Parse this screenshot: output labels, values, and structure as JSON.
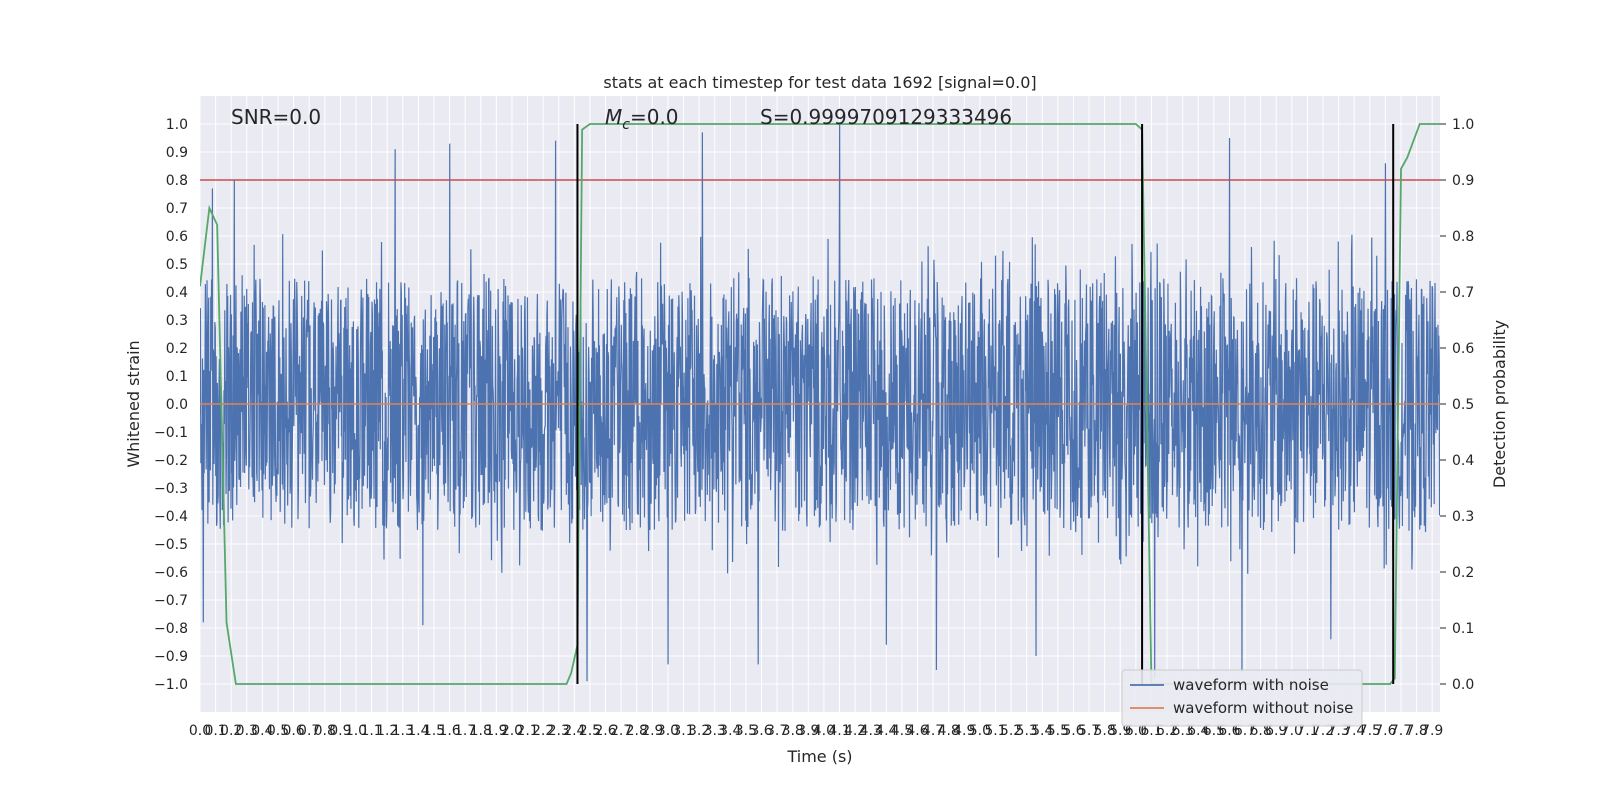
{
  "chart_data": {
    "type": "line",
    "title": "stats at each timestep for test data 1692 [signal=0.0]",
    "xlabel": "Time (s)",
    "ylabel_left": "Whitened strain",
    "ylabel_right": "Detection probability",
    "xlim": [
      0.0,
      7.95
    ],
    "ylim_left": [
      -1.1,
      1.1
    ],
    "ylim_right": [
      -0.05,
      1.05
    ],
    "x_ticks": [
      0.0,
      0.1,
      0.2,
      0.3,
      0.4,
      0.5,
      0.6,
      0.7,
      0.8,
      0.9,
      1.0,
      1.1,
      1.2,
      1.3,
      1.4,
      1.5,
      1.6,
      1.7,
      1.8,
      1.9,
      2.0,
      2.1,
      2.2,
      2.3,
      2.4,
      2.5,
      2.6,
      2.7,
      2.8,
      2.9,
      3.0,
      3.1,
      3.2,
      3.3,
      3.4,
      3.5,
      3.6,
      3.7,
      3.8,
      3.9,
      4.0,
      4.1,
      4.2,
      4.3,
      4.4,
      4.5,
      4.6,
      4.7,
      4.8,
      4.9,
      5.0,
      5.1,
      5.2,
      5.3,
      5.4,
      5.5,
      5.6,
      5.7,
      5.8,
      5.9,
      6.0,
      6.1,
      6.2,
      6.3,
      6.4,
      6.5,
      6.6,
      6.7,
      6.8,
      6.9,
      7.0,
      7.1,
      7.2,
      7.3,
      7.4,
      7.5,
      7.6,
      7.7,
      7.8,
      7.9
    ],
    "y_ticks_left": [
      -1.0,
      -0.9,
      -0.8,
      -0.7,
      -0.6,
      -0.5,
      -0.4,
      -0.3,
      -0.2,
      -0.1,
      0.0,
      0.1,
      0.2,
      0.3,
      0.4,
      0.5,
      0.6,
      0.7,
      0.8,
      0.9,
      1.0
    ],
    "y_tick_labels_left": [
      "−1.0",
      "−0.9",
      "−0.8",
      "−0.7",
      "−0.6",
      "−0.5",
      "−0.4",
      "−0.3",
      "−0.2",
      "−0.1",
      "0.0",
      "0.1",
      "0.2",
      "0.3",
      "0.4",
      "0.5",
      "0.6",
      "0.7",
      "0.8",
      "0.9",
      "1.0"
    ],
    "y_ticks_right": [
      0.0,
      0.1,
      0.2,
      0.3,
      0.4,
      0.5,
      0.6,
      0.7,
      0.8,
      0.9,
      1.0
    ],
    "y_tick_labels_right": [
      "0.0",
      "0.1",
      "0.2",
      "0.3",
      "0.4",
      "0.5",
      "0.6",
      "0.7",
      "0.8",
      "0.9",
      "1.0"
    ],
    "grid": true,
    "legend_position": "bottom-right",
    "annotations": {
      "snr": "SNR=0.0",
      "mc_symbol": "M",
      "mc_subscript": "c",
      "mc_value": "=0.0",
      "s": "S=0.9999709129333496"
    },
    "threshold": 0.8,
    "event_lines_x": [
      2.42,
      6.04,
      7.65
    ],
    "series": [
      {
        "name": "waveform with noise",
        "color": "#4c72b0",
        "axis": "left",
        "typical_range": [
          -0.45,
          0.45
        ],
        "notable_peaks": [
          [
            0.08,
            0.77
          ],
          [
            0.22,
            0.8
          ],
          [
            1.25,
            0.91
          ],
          [
            1.6,
            0.93
          ],
          [
            2.28,
            0.94
          ],
          [
            3.22,
            0.97
          ],
          [
            4.1,
            1.0
          ],
          [
            6.6,
            0.95
          ],
          [
            7.6,
            0.86
          ]
        ],
        "notable_troughs": [
          [
            0.02,
            -0.78
          ],
          [
            1.43,
            -0.79
          ],
          [
            2.48,
            -0.99
          ],
          [
            3.0,
            -0.93
          ],
          [
            3.58,
            -0.93
          ],
          [
            4.4,
            -0.86
          ],
          [
            4.72,
            -0.95
          ],
          [
            5.36,
            -0.9
          ],
          [
            6.12,
            -0.98
          ],
          [
            6.68,
            -0.96
          ],
          [
            7.25,
            -0.84
          ]
        ]
      },
      {
        "name": "waveform without noise",
        "color": "#dd8452",
        "axis": "left",
        "x": [
          0.0,
          7.95
        ],
        "y": [
          0.0,
          0.0
        ]
      },
      {
        "name": "",
        "color": "#55a868",
        "axis": "right",
        "x": [
          0.0,
          0.06,
          0.11,
          0.17,
          0.23,
          0.27,
          2.35,
          2.38,
          2.42,
          2.45,
          2.5,
          6.0,
          6.04,
          6.07,
          6.1,
          7.6,
          7.63,
          7.66,
          7.7,
          7.74,
          7.82,
          7.95
        ],
        "y": [
          0.71,
          0.85,
          0.82,
          0.11,
          0.0,
          0.0,
          0.0,
          0.02,
          0.07,
          0.99,
          1.0,
          1.0,
          0.99,
          0.5,
          0.0,
          0.0,
          0.0,
          0.01,
          0.92,
          0.94,
          1.0,
          1.0
        ]
      },
      {
        "name": "",
        "color": "#c44e52",
        "axis": "left",
        "x": [
          0.0,
          7.95
        ],
        "y": [
          0.8,
          0.8
        ]
      }
    ]
  }
}
